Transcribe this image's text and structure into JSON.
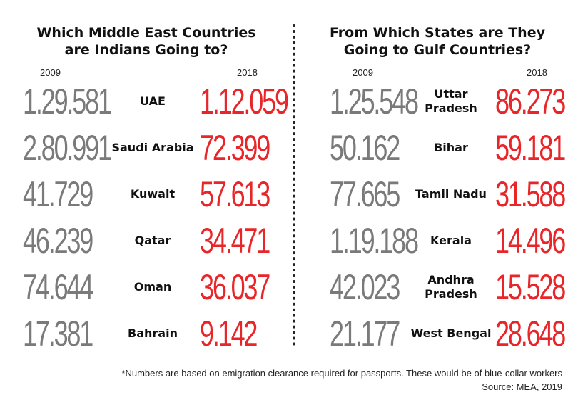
{
  "chart_data": [
    {
      "type": "table",
      "title": "Which Middle East Countries are Indians Going to?",
      "title_lines": [
        "Which Middle East Countries",
        "are Indians Going to?"
      ],
      "columns": [
        "2009",
        "",
        "2018"
      ],
      "rows": [
        {
          "label": "UAE",
          "v2009": "1.29.581",
          "v2018": "1.12.059"
        },
        {
          "label": "Saudi Arabia",
          "v2009": "2.80.991",
          "v2018": "72.399"
        },
        {
          "label": "Kuwait",
          "v2009": "41.729",
          "v2018": "57.613"
        },
        {
          "label": "Qatar",
          "v2009": "46.239",
          "v2018": "34.471"
        },
        {
          "label": "Oman",
          "v2009": "74.644",
          "v2018": "36.037"
        },
        {
          "label": "Bahrain",
          "v2009": "17.381",
          "v2018": "9.142"
        }
      ]
    },
    {
      "type": "table",
      "title": "From Which States are They Going to Gulf Countries?",
      "title_lines": [
        "From Which States are They",
        "Going to Gulf Countries?"
      ],
      "columns": [
        "2009",
        "",
        "2018"
      ],
      "rows": [
        {
          "label": "Uttar Pradesh",
          "label_lines": [
            "Uttar",
            "Pradesh"
          ],
          "v2009": "1.25.548",
          "v2018": "86.273"
        },
        {
          "label": "Bihar",
          "label_lines": [
            "Bihar"
          ],
          "v2009": "50.162",
          "v2018": "59.181"
        },
        {
          "label": "Tamil Nadu",
          "label_lines": [
            "Tamil Nadu"
          ],
          "v2009": "77.665",
          "v2018": "31.588"
        },
        {
          "label": "Kerala",
          "label_lines": [
            "Kerala"
          ],
          "v2009": "1.19.188",
          "v2018": "14.496"
        },
        {
          "label": "Andhra Pradesh",
          "label_lines": [
            "Andhra",
            "Pradesh"
          ],
          "v2009": "42.023",
          "v2018": "15.528"
        },
        {
          "label": "West Bengal",
          "label_lines": [
            "West Bengal"
          ],
          "v2009": "21.177",
          "v2018": "28.648"
        }
      ]
    }
  ],
  "colors": {
    "value_2009": "#7a7a7a",
    "value_2018": "#e8262a",
    "text": "#111111"
  },
  "footnote": "*Numbers are based on emigration clearance required for passports. These would be of blue-collar workers",
  "source": "Source: MEA, 2019"
}
